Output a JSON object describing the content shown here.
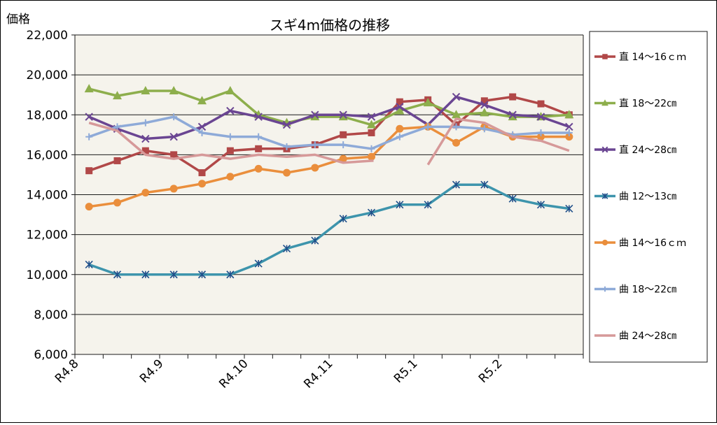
{
  "chart_data": {
    "type": "line",
    "title": "スギ4m価格の推移",
    "ylabel": "価格",
    "xlabel": "",
    "ylim": [
      6000,
      22000
    ],
    "yticks": [
      6000,
      8000,
      10000,
      12000,
      14000,
      16000,
      18000,
      20000,
      22000
    ],
    "ytick_labels": [
      "6,000",
      "8,000",
      "10,000",
      "12,000",
      "14,000",
      "16,000",
      "18,000",
      "20,000",
      "22,000"
    ],
    "x_count": 18,
    "x_tick_labels": [
      {
        "index": 0,
        "label": "R4.8"
      },
      {
        "index": 3,
        "label": "R4.9"
      },
      {
        "index": 6,
        "label": "R4.10"
      },
      {
        "index": 9,
        "label": "R4.11"
      },
      {
        "index": 12,
        "label": "R5.1"
      },
      {
        "index": 15,
        "label": "R5.2"
      }
    ],
    "grid": "horizontal",
    "legend_position": "right",
    "plot_background": "#f5f3ec",
    "series": [
      {
        "name": "直 14～16ｃｍ",
        "color": "#b14848",
        "marker": "square",
        "values": [
          15200,
          15700,
          16200,
          16000,
          15100,
          16200,
          16300,
          16300,
          16500,
          17000,
          17100,
          18650,
          18750,
          17500,
          18700,
          18900,
          18550,
          18000
        ]
      },
      {
        "name": "直 18～22㎝",
        "color": "#8dae4c",
        "marker": "triangle",
        "values": [
          19300,
          18950,
          19200,
          19200,
          18700,
          19200,
          18000,
          17600,
          17900,
          17900,
          17500,
          18200,
          18600,
          18000,
          18100,
          17900,
          17900,
          18000
        ]
      },
      {
        "name": "直 24～28㎝",
        "color": "#6a4592",
        "marker": "x",
        "values": [
          17900,
          17300,
          16800,
          16900,
          17400,
          18200,
          17900,
          17500,
          18000,
          18000,
          17900,
          18400,
          17500,
          18900,
          18500,
          18000,
          17900,
          17400
        ]
      },
      {
        "name": "曲 12～13㎝",
        "color": "#3d94ac",
        "marker": "star",
        "values": [
          10500,
          10000,
          10000,
          10000,
          10000,
          10000,
          10550,
          11300,
          11700,
          12800,
          13100,
          13500,
          13500,
          14500,
          14500,
          13800,
          13500,
          13300
        ]
      },
      {
        "name": "曲 14～16ｃｍ",
        "color": "#ea8e3c",
        "marker": "circle",
        "values": [
          13400,
          13600,
          14100,
          14300,
          14550,
          14900,
          15300,
          15100,
          15350,
          15800,
          15900,
          17300,
          17400,
          16600,
          17400,
          16900,
          16900,
          16900
        ]
      },
      {
        "name": "曲 18～22㎝",
        "color": "#8eaad8",
        "marker": "plus",
        "values": [
          16900,
          17400,
          17600,
          17900,
          17100,
          16900,
          16900,
          16400,
          16500,
          16500,
          16300,
          16900,
          17400,
          17400,
          17300,
          17000,
          17100,
          17100
        ]
      },
      {
        "name": "曲 24～28㎝",
        "color": "#d69999",
        "marker": "none",
        "values": [
          17600,
          17200,
          16000,
          15800,
          16000,
          15800,
          16000,
          15900,
          16000,
          15600,
          15700,
          null,
          15500,
          17800,
          17600,
          16900,
          16700,
          16200
        ],
        "gap_segments": [
          [
            11,
            12
          ]
        ]
      }
    ]
  }
}
